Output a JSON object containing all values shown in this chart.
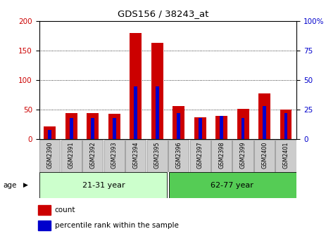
{
  "title": "GDS156 / 38243_at",
  "samples": [
    "GSM2390",
    "GSM2391",
    "GSM2392",
    "GSM2393",
    "GSM2394",
    "GSM2395",
    "GSM2396",
    "GSM2397",
    "GSM2398",
    "GSM2399",
    "GSM2400",
    "GSM2401"
  ],
  "count_values": [
    22,
    44,
    44,
    43,
    180,
    163,
    56,
    37,
    39,
    52,
    78,
    50
  ],
  "percentile_values": [
    8,
    18,
    18,
    18,
    45,
    45,
    22,
    18,
    20,
    18,
    28,
    22
  ],
  "group1_label": "21-31 year",
  "group2_label": "62-77 year",
  "group1_count": 6,
  "group2_count": 6,
  "left_ylim": [
    0,
    200
  ],
  "right_ylim": [
    0,
    100
  ],
  "left_yticks": [
    0,
    50,
    100,
    150,
    200
  ],
  "right_yticks": [
    0,
    25,
    50,
    75,
    100
  ],
  "left_ycolor": "#cc0000",
  "right_ycolor": "#0000cc",
  "bar_color_red": "#cc0000",
  "bar_color_blue": "#0000cc",
  "group1_bg": "#ccffcc",
  "group2_bg": "#55cc55",
  "cell_bg": "#cccccc",
  "dotted_line_color": "#000000",
  "legend_count_label": "count",
  "legend_percentile_label": "percentile rank within the sample",
  "age_label": "age"
}
